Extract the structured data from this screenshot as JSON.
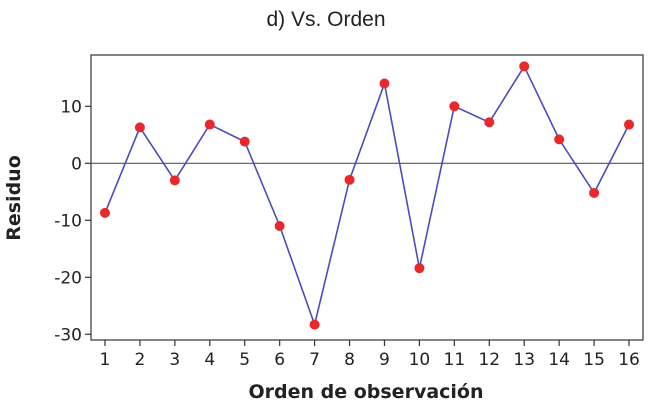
{
  "chart_data": {
    "type": "line",
    "title": "d) Vs. Orden",
    "xlabel": "Orden de observación",
    "ylabel": "Residuo",
    "x": [
      1,
      2,
      3,
      4,
      5,
      6,
      7,
      8,
      9,
      10,
      11,
      12,
      13,
      14,
      15,
      16
    ],
    "x_tick_labels": [
      "1",
      "2",
      "3",
      "4",
      "5",
      "6",
      "7",
      "8",
      "9",
      "10",
      "11",
      "12",
      "13",
      "14",
      "15",
      "16"
    ],
    "y_ticks": [
      10,
      0,
      -10,
      -20,
      -30
    ],
    "y_tick_labels": [
      "10",
      "0",
      "-10",
      "-20",
      "-30"
    ],
    "ylim": [
      -31,
      19
    ],
    "xlim": [
      0.6,
      16.4
    ],
    "reference_line": 0,
    "grid": false,
    "series": [
      {
        "values": [
          -8.7,
          6.3,
          -3.0,
          6.8,
          3.8,
          -11.0,
          -28.3,
          -2.9,
          14.0,
          -18.4,
          10.0,
          7.2,
          17.0,
          4.2,
          -5.2,
          6.8
        ]
      }
    ],
    "colors": {
      "line": "#4b4bbf",
      "marker": "#e8282b",
      "reference": "#555555",
      "frame": "#333333"
    }
  }
}
